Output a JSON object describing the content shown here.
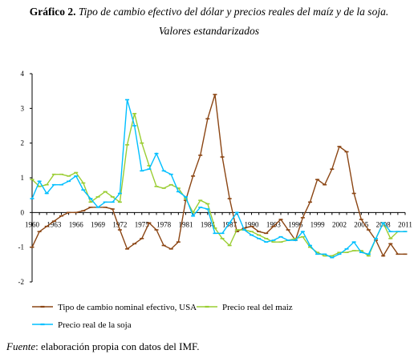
{
  "figure": {
    "label": "Gráfico 2.",
    "title": "Tipo de cambio efectivo del dólar y precios reales del maíz y de la soja.",
    "subtitle": "Valores estandarizados"
  },
  "source": {
    "label": "Fuente",
    "text": ": elaboración propia con datos del IMF."
  },
  "colors": {
    "tipo_cambio": "#8b4513",
    "maiz": "#9acd32",
    "soja": "#00bfff"
  },
  "chart_data": {
    "type": "line",
    "x": [
      1960,
      1961,
      1962,
      1963,
      1964,
      1965,
      1966,
      1967,
      1968,
      1969,
      1970,
      1971,
      1972,
      1973,
      1974,
      1975,
      1976,
      1977,
      1978,
      1979,
      1980,
      1981,
      1982,
      1983,
      1984,
      1985,
      1986,
      1987,
      1988,
      1989,
      1990,
      1991,
      1992,
      1993,
      1994,
      1995,
      1996,
      1997,
      1998,
      1999,
      2000,
      2001,
      2002,
      2003,
      2004,
      2005,
      2006,
      2007,
      2008,
      2009,
      2010,
      2011
    ],
    "xticks": [
      "1960",
      "1963",
      "1966",
      "1969",
      "1972",
      "1975",
      "1978",
      "1981",
      "1984",
      "1987",
      "1990",
      "1993",
      "1996",
      "1999",
      "2002",
      "2005",
      "2008",
      "2011"
    ],
    "yticks": [
      "4",
      "3",
      "2",
      "1",
      "0",
      "-1",
      "-2"
    ],
    "ylim": [
      -2,
      4
    ],
    "legend_position": "bottom",
    "series": [
      {
        "name": "Tipo de cambio nominal efectivo, USA",
        "color": "#8b4513",
        "values": [
          -1.0,
          -0.55,
          -0.4,
          -0.25,
          -0.1,
          0.0,
          0.0,
          0.05,
          0.15,
          0.15,
          0.15,
          0.1,
          -0.5,
          -1.05,
          -0.9,
          -0.75,
          -0.3,
          -0.5,
          -0.95,
          -1.05,
          -0.85,
          0.35,
          1.05,
          1.65,
          2.7,
          3.4,
          1.6,
          0.4,
          -0.55,
          -0.45,
          -0.4,
          -0.55,
          -0.6,
          -0.4,
          -0.2,
          -0.5,
          -0.8,
          -0.15,
          0.3,
          0.95,
          0.8,
          1.25,
          1.9,
          1.75,
          0.55,
          -0.2,
          -0.5,
          -0.8,
          -1.25,
          -0.9,
          -1.2,
          -1.2
        ]
      },
      {
        "name": "Precio real del maiz",
        "color": "#9acd32",
        "values": [
          0.95,
          0.75,
          0.8,
          1.1,
          1.1,
          1.05,
          1.15,
          0.85,
          0.3,
          0.45,
          0.6,
          0.45,
          0.3,
          1.95,
          2.85,
          2.0,
          1.35,
          0.75,
          0.7,
          0.8,
          0.7,
          0.4,
          0.0,
          0.35,
          0.25,
          -0.45,
          -0.75,
          -0.95,
          -0.5,
          -0.5,
          -0.55,
          -0.65,
          -0.75,
          -0.85,
          -0.85,
          -0.8,
          -0.75,
          -0.7,
          -1.0,
          -1.15,
          -1.25,
          -1.25,
          -1.15,
          -1.15,
          -1.1,
          -1.1,
          -1.25,
          -0.75,
          -0.3,
          -0.75,
          -0.55,
          -0.55
        ]
      },
      {
        "name": "Precio real de la soja",
        "color": "#00bfff",
        "values": [
          0.4,
          0.9,
          0.55,
          0.8,
          0.8,
          0.9,
          1.05,
          0.65,
          0.4,
          0.15,
          0.3,
          0.3,
          0.55,
          3.25,
          2.5,
          1.2,
          1.25,
          1.7,
          1.2,
          1.1,
          0.6,
          0.45,
          -0.1,
          0.15,
          0.1,
          -0.6,
          -0.6,
          -0.3,
          0.0,
          -0.5,
          -0.65,
          -0.75,
          -0.85,
          -0.8,
          -0.7,
          -0.8,
          -0.8,
          -0.55,
          -0.95,
          -1.2,
          -1.2,
          -1.3,
          -1.2,
          -1.05,
          -0.85,
          -1.15,
          -1.2,
          -0.75,
          -0.3,
          -0.55,
          -0.55,
          -0.55
        ]
      }
    ]
  }
}
